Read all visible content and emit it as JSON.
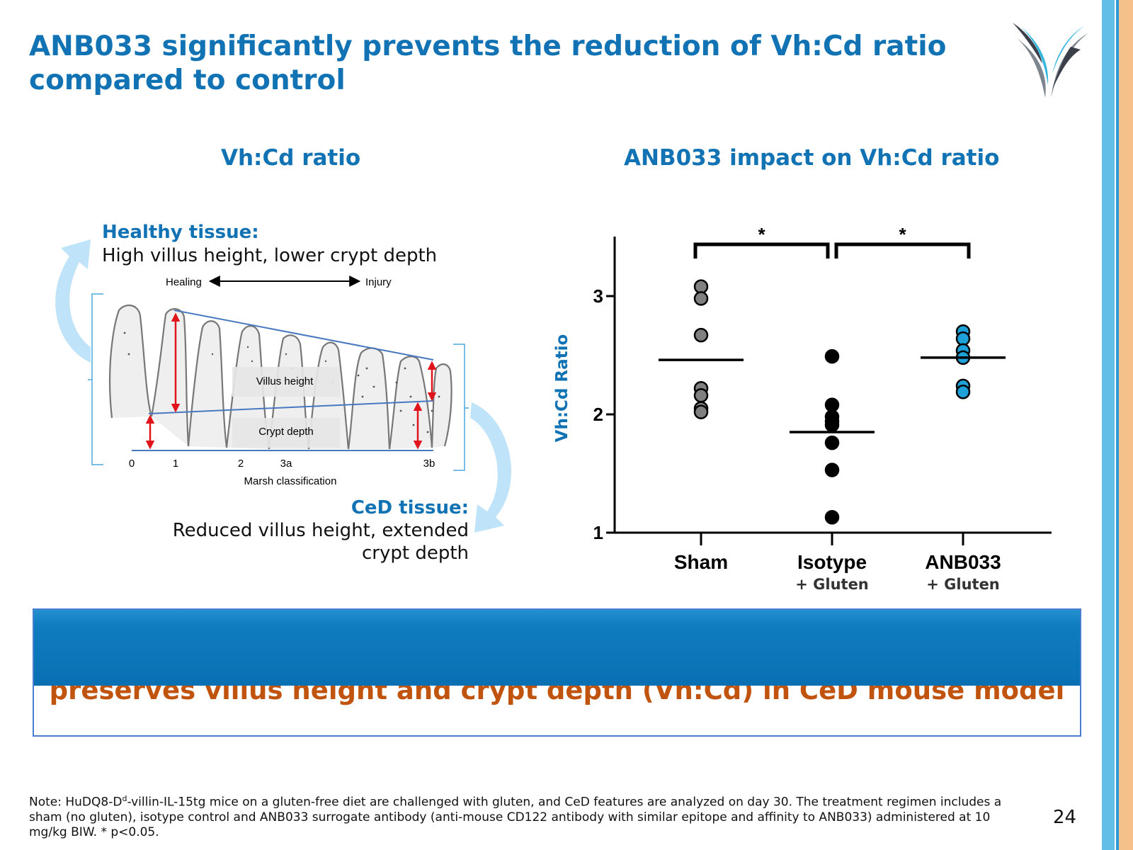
{
  "slide": {
    "title": "ANB033 significantly prevents the reduction of Vh:Cd ratio compared to control",
    "page_number": "24",
    "note_prefix": "Note: HuDQ8-D",
    "note_superscript": "d",
    "note_rest": "-villin-IL-15tg mice on a gluten-free diet are challenged with gluten, and CeD features are analyzed on day 30. The treatment regimen includes a sham (no gluten), isotype control and ANB033 surrogate antibody (anti-mouse CD122 antibody with similar epitope and affinity to ANB033) administered at 10 mg/kg BIW. * p<0.05.",
    "banner_text": "preserves villus height and crypt depth (Vh:Cd) in CeD mouse model",
    "colors": {
      "brand_blue": "#1273b4",
      "banner_orange": "#c0540e",
      "light_arrow": "#bfe3f8"
    }
  },
  "left_panel": {
    "title": "Vh:Cd ratio",
    "healthy_heading": "Healthy tissue:",
    "healthy_desc": "High villus height, lower crypt depth",
    "ced_heading": "CeD tissue:",
    "ced_desc_line1": "Reduced villus height, extended",
    "ced_desc_line2": "crypt depth",
    "diagram": {
      "healing": "Healing",
      "injury": "Injury",
      "villus_label": "Villus height",
      "crypt_label": "Crypt depth",
      "axis_title": "Marsh classification",
      "stages": [
        "0",
        "1",
        "2",
        "3a",
        "3b"
      ]
    }
  },
  "right_panel": {
    "title": "ANB033 impact on Vh:Cd ratio"
  },
  "chart_data": {
    "type": "scatter",
    "title": "ANB033 impact on Vh:Cd ratio",
    "xlabel": "",
    "ylabel": "Vh:Cd Ratio",
    "ylim": [
      1,
      3.5
    ],
    "yticks": [
      "1",
      "2",
      "3"
    ],
    "categories": [
      {
        "label": "Sham",
        "sublabel": ""
      },
      {
        "label": "Isotype",
        "sublabel": "+ Gluten"
      },
      {
        "label": "ANB033",
        "sublabel": "+ Gluten"
      }
    ],
    "series": [
      {
        "values": [
          3.08,
          2.98,
          2.67,
          2.22,
          2.16,
          2.05,
          2.02
        ],
        "mean": 2.46,
        "color": "#808080"
      },
      {
        "values": [
          2.49,
          2.08,
          1.98,
          1.94,
          1.91,
          1.76,
          1.53,
          1.13
        ],
        "mean": 1.85,
        "color": "#000000"
      },
      {
        "values": [
          2.7,
          2.64,
          2.54,
          2.48,
          2.24,
          2.19
        ],
        "mean": 2.48,
        "color": "#1ea1d9"
      }
    ],
    "significance": [
      {
        "from": 0,
        "to": 1,
        "label": "*"
      },
      {
        "from": 1,
        "to": 2,
        "label": "*"
      }
    ],
    "grid": false,
    "legend": "none"
  }
}
